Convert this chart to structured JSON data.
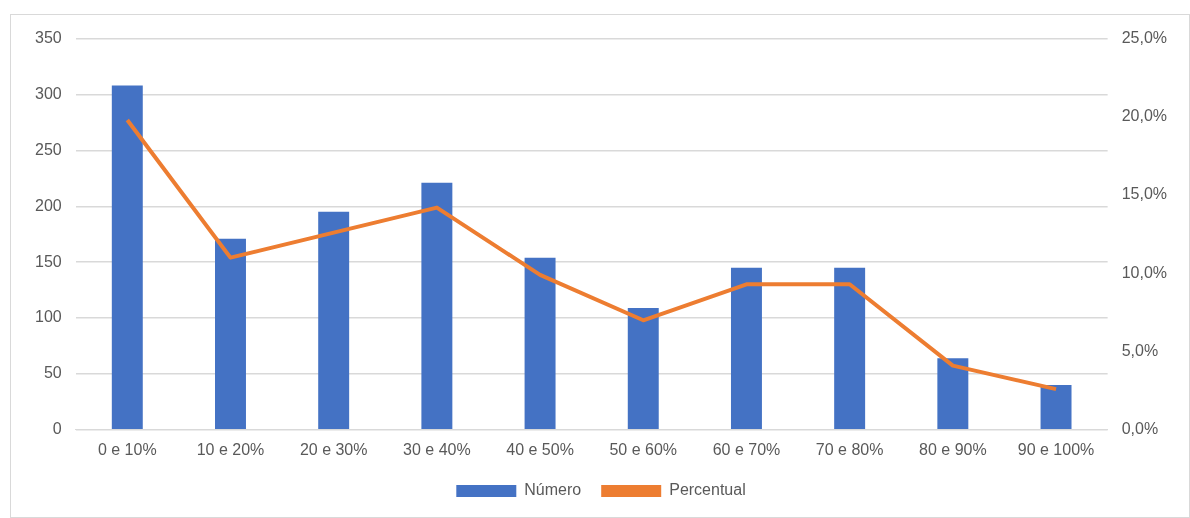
{
  "chart_data": {
    "type": "bar",
    "categories": [
      "0 e 10%",
      "10 e 20%",
      "20 e 30%",
      "30 e 40%",
      "40 e 50%",
      "50 e 60%",
      "60 e 70%",
      "70 e 80%",
      "80 e 90%",
      "90 e 100%"
    ],
    "series": [
      {
        "name": "Número",
        "color": "#4472c4",
        "values": [
          308,
          171,
          195,
          221,
          154,
          109,
          145,
          145,
          64,
          40
        ]
      },
      {
        "name": "Percentual",
        "type": "line",
        "axis": "y2",
        "color": "#ed7d31",
        "values": [
          19.8,
          11.0,
          12.6,
          14.2,
          9.9,
          7.0,
          9.3,
          9.3,
          4.1,
          2.6
        ]
      }
    ],
    "ylim": [
      0,
      350
    ],
    "yticks": [
      0,
      50,
      100,
      150,
      200,
      250,
      300,
      350
    ],
    "y2lim": [
      0,
      25
    ],
    "y2ticks": [
      {
        "value": 0,
        "label": "0,0%"
      },
      {
        "value": 5,
        "label": "5,0%"
      },
      {
        "value": 10,
        "label": "10,0%"
      },
      {
        "value": 15,
        "label": "15,0%"
      },
      {
        "value": 20,
        "label": "20,0%"
      },
      {
        "value": 25,
        "label": "25,0%"
      }
    ],
    "grid": "y",
    "legend": "bottom",
    "marker": "none"
  }
}
